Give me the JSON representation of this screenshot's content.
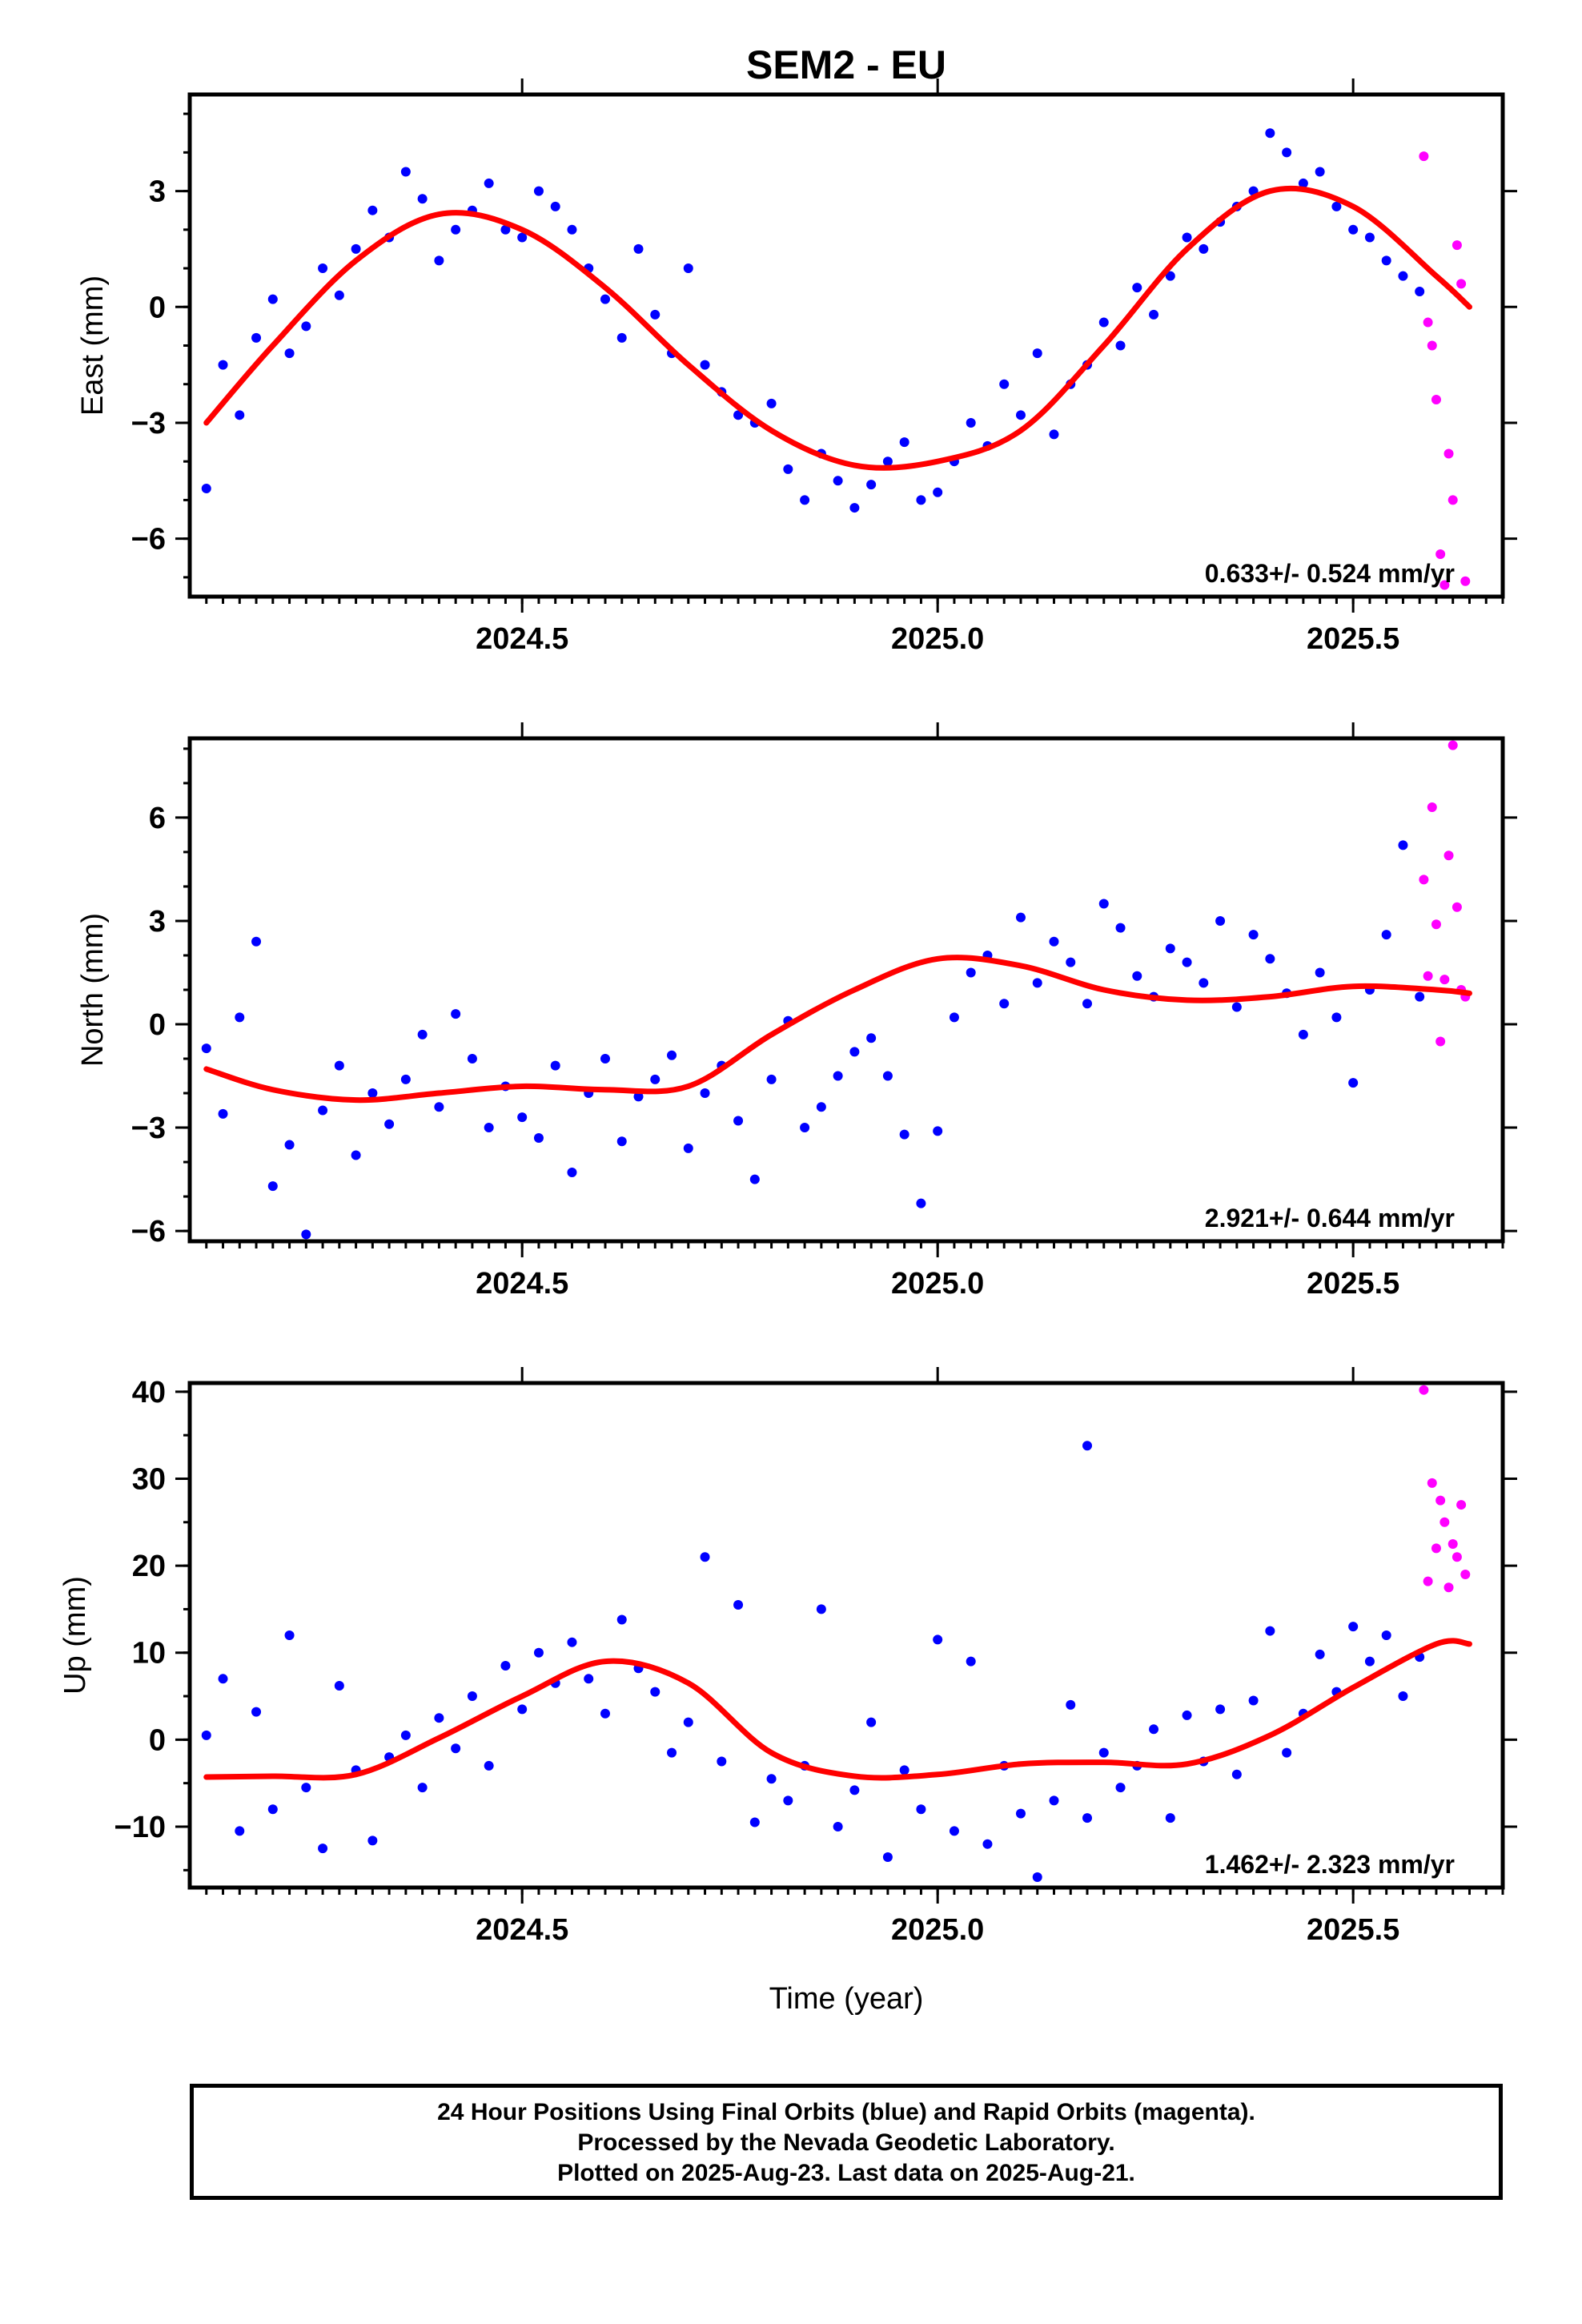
{
  "title": "SEM2 - EU",
  "caption": {
    "line1": "24 Hour Positions Using Final Orbits (blue) and Rapid Orbits (magenta).",
    "line2": "Processed by the Nevada Geodetic Laboratory.",
    "line3": "Plotted on 2025-Aug-23. Last data on 2025-Aug-21."
  },
  "colors": {
    "final": "#0000ff",
    "rapid": "#ff00ff",
    "model": "#ff0000"
  },
  "chart_data": [
    {
      "type": "scatter",
      "ylabel": "East (mm)",
      "xlim": [
        2024.1,
        2025.68
      ],
      "ylim": [
        -7.5,
        5.5
      ],
      "xticks": [
        "2024.5",
        "2025.0",
        "2025.5"
      ],
      "yticks": [
        "3",
        "0",
        "−3",
        "−6"
      ],
      "rate_label": "0.633+/- 0.524 mm/yr",
      "series": [
        {
          "style": "final-points",
          "x": [
            2024.12,
            2024.14,
            2024.16,
            2024.18,
            2024.2,
            2024.22,
            2024.24,
            2024.26,
            2024.28,
            2024.3,
            2024.32,
            2024.34,
            2024.36,
            2024.38,
            2024.4,
            2024.42,
            2024.44,
            2024.46,
            2024.48,
            2024.5,
            2024.52,
            2024.54,
            2024.56,
            2024.58,
            2024.6,
            2024.62,
            2024.64,
            2024.66,
            2024.68,
            2024.7,
            2024.72,
            2024.74,
            2024.76,
            2024.78,
            2024.8,
            2024.82,
            2024.84,
            2024.86,
            2024.88,
            2024.9,
            2024.92,
            2024.94,
            2024.96,
            2024.98,
            2025.0,
            2025.02,
            2025.04,
            2025.06,
            2025.08,
            2025.1,
            2025.12,
            2025.14,
            2025.16,
            2025.18,
            2025.2,
            2025.22,
            2025.24,
            2025.26,
            2025.28,
            2025.3,
            2025.32,
            2025.34,
            2025.36,
            2025.38,
            2025.4,
            2025.42,
            2025.44,
            2025.46,
            2025.48,
            2025.5,
            2025.52,
            2025.54,
            2025.56,
            2025.58
          ],
          "y": [
            -4.7,
            -1.5,
            -2.8,
            -0.8,
            0.2,
            -1.2,
            -0.5,
            1.0,
            0.3,
            1.5,
            2.5,
            1.8,
            3.5,
            2.8,
            1.2,
            2.0,
            2.5,
            3.2,
            2.0,
            1.8,
            3.0,
            2.6,
            2.0,
            1.0,
            0.2,
            -0.8,
            1.5,
            -0.2,
            -1.2,
            1.0,
            -1.5,
            -2.2,
            -2.8,
            -3.0,
            -2.5,
            -4.2,
            -5.0,
            -3.8,
            -4.5,
            -5.2,
            -4.6,
            -4.0,
            -3.5,
            -5.0,
            -4.8,
            -4.0,
            -3.0,
            -3.6,
            -2.0,
            -2.8,
            -1.2,
            -3.3,
            -2.0,
            -1.5,
            -0.4,
            -1.0,
            0.5,
            -0.2,
            0.8,
            1.8,
            1.5,
            2.2,
            2.6,
            3.0,
            4.5,
            4.0,
            3.2,
            3.5,
            2.6,
            2.0,
            1.8,
            1.2,
            0.8,
            0.4
          ]
        },
        {
          "style": "rapid-points",
          "x": [
            2025.585,
            2025.59,
            2025.595,
            2025.6,
            2025.605,
            2025.61,
            2025.615,
            2025.62,
            2025.625,
            2025.63,
            2025.635
          ],
          "y": [
            3.9,
            -0.4,
            -1.0,
            -2.4,
            -6.4,
            -7.2,
            -3.8,
            -5.0,
            1.6,
            0.6,
            -7.1
          ]
        },
        {
          "style": "model-line",
          "x": [
            2024.12,
            2024.2,
            2024.3,
            2024.4,
            2024.5,
            2024.6,
            2024.7,
            2024.8,
            2024.9,
            2025.0,
            2025.1,
            2025.2,
            2025.3,
            2025.4,
            2025.5,
            2025.6,
            2025.64
          ],
          "y": [
            -3.0,
            -1.0,
            1.2,
            2.4,
            2.0,
            0.5,
            -1.5,
            -3.2,
            -4.1,
            -4.0,
            -3.2,
            -1.0,
            1.5,
            3.0,
            2.6,
            0.8,
            0.0
          ]
        }
      ]
    },
    {
      "type": "scatter",
      "ylabel": "North (mm)",
      "xlim": [
        2024.1,
        2025.68
      ],
      "ylim": [
        -6.3,
        8.3
      ],
      "xticks": [
        "2024.5",
        "2025.0",
        "2025.5"
      ],
      "yticks": [
        "6",
        "3",
        "0",
        "−3",
        "−6"
      ],
      "rate_label": "2.921+/- 0.644 mm/yr",
      "series": [
        {
          "style": "final-points",
          "x": [
            2024.12,
            2024.14,
            2024.16,
            2024.18,
            2024.2,
            2024.22,
            2024.24,
            2024.26,
            2024.28,
            2024.3,
            2024.32,
            2024.34,
            2024.36,
            2024.38,
            2024.4,
            2024.42,
            2024.44,
            2024.46,
            2024.48,
            2024.5,
            2024.52,
            2024.54,
            2024.56,
            2024.58,
            2024.6,
            2024.62,
            2024.64,
            2024.66,
            2024.68,
            2024.7,
            2024.72,
            2024.74,
            2024.76,
            2024.78,
            2024.8,
            2024.82,
            2024.84,
            2024.86,
            2024.88,
            2024.9,
            2024.92,
            2024.94,
            2024.96,
            2024.98,
            2025.0,
            2025.02,
            2025.04,
            2025.06,
            2025.08,
            2025.1,
            2025.12,
            2025.14,
            2025.16,
            2025.18,
            2025.2,
            2025.22,
            2025.24,
            2025.26,
            2025.28,
            2025.3,
            2025.32,
            2025.34,
            2025.36,
            2025.38,
            2025.4,
            2025.42,
            2025.44,
            2025.46,
            2025.48,
            2025.5,
            2025.52,
            2025.54,
            2025.56,
            2025.58
          ],
          "y": [
            -0.7,
            -2.6,
            0.2,
            2.4,
            -4.7,
            -3.5,
            -6.1,
            -2.5,
            -1.2,
            -3.8,
            -2.0,
            -2.9,
            -1.6,
            -0.3,
            -2.4,
            0.3,
            -1.0,
            -3.0,
            -1.8,
            -2.7,
            -3.3,
            -1.2,
            -4.3,
            -2.0,
            -1.0,
            -3.4,
            -2.1,
            -1.6,
            -0.9,
            -3.6,
            -2.0,
            -1.2,
            -2.8,
            -4.5,
            -1.6,
            0.1,
            -3.0,
            -2.4,
            -1.5,
            -0.8,
            -0.4,
            -1.5,
            -3.2,
            -5.2,
            -3.1,
            0.2,
            1.5,
            2.0,
            0.6,
            3.1,
            1.2,
            2.4,
            1.8,
            0.6,
            3.5,
            2.8,
            1.4,
            0.8,
            2.2,
            1.8,
            1.2,
            3.0,
            0.5,
            2.6,
            1.9,
            0.9,
            -0.3,
            1.5,
            0.2,
            -1.7,
            1.0,
            2.6,
            5.2,
            0.8
          ]
        },
        {
          "style": "rapid-points",
          "x": [
            2025.585,
            2025.59,
            2025.595,
            2025.6,
            2025.605,
            2025.61,
            2025.615,
            2025.62,
            2025.625,
            2025.63,
            2025.635
          ],
          "y": [
            4.2,
            1.4,
            6.3,
            2.9,
            -0.5,
            1.3,
            4.9,
            8.1,
            3.4,
            1.0,
            0.8
          ]
        },
        {
          "style": "model-line",
          "x": [
            2024.12,
            2024.2,
            2024.3,
            2024.4,
            2024.5,
            2024.6,
            2024.7,
            2024.8,
            2024.9,
            2025.0,
            2025.1,
            2025.2,
            2025.3,
            2025.4,
            2025.5,
            2025.6,
            2025.64
          ],
          "y": [
            -1.3,
            -1.9,
            -2.2,
            -2.0,
            -1.8,
            -1.9,
            -1.8,
            -0.3,
            1.0,
            1.9,
            1.7,
            1.0,
            0.7,
            0.8,
            1.1,
            1.0,
            0.9
          ]
        }
      ]
    },
    {
      "type": "scatter",
      "ylabel": "Up (mm)",
      "xlabel": "Time (year)",
      "xlim": [
        2024.1,
        2025.68
      ],
      "ylim": [
        -17,
        41
      ],
      "xticks": [
        "2024.5",
        "2025.0",
        "2025.5"
      ],
      "yticks": [
        "40",
        "30",
        "20",
        "10",
        "0",
        "−10"
      ],
      "rate_label": "1.462+/- 2.323 mm/yr",
      "series": [
        {
          "style": "final-points",
          "x": [
            2024.12,
            2024.14,
            2024.16,
            2024.18,
            2024.2,
            2024.22,
            2024.24,
            2024.26,
            2024.28,
            2024.3,
            2024.32,
            2024.34,
            2024.36,
            2024.38,
            2024.4,
            2024.42,
            2024.44,
            2024.46,
            2024.48,
            2024.5,
            2024.52,
            2024.54,
            2024.56,
            2024.58,
            2024.6,
            2024.62,
            2024.64,
            2024.66,
            2024.68,
            2024.7,
            2024.72,
            2024.74,
            2024.76,
            2024.78,
            2024.8,
            2024.82,
            2024.84,
            2024.86,
            2024.88,
            2024.9,
            2024.92,
            2024.94,
            2024.96,
            2024.98,
            2025.0,
            2025.02,
            2025.04,
            2025.06,
            2025.08,
            2025.1,
            2025.12,
            2025.14,
            2025.16,
            2025.18,
            2025.2,
            2025.22,
            2025.24,
            2025.26,
            2025.28,
            2025.3,
            2025.32,
            2025.34,
            2025.36,
            2025.38,
            2025.4,
            2025.42,
            2025.44,
            2025.46,
            2025.48,
            2025.5,
            2025.52,
            2025.54,
            2025.56,
            2025.58
          ],
          "y": [
            0.5,
            7.0,
            -10.5,
            3.2,
            -8.0,
            12.0,
            -5.5,
            -12.5,
            6.2,
            -3.5,
            -11.6,
            -2.0,
            0.5,
            -5.5,
            2.5,
            -1.0,
            5.0,
            -3.0,
            8.5,
            3.5,
            10.0,
            6.5,
            11.2,
            7.0,
            3.0,
            13.8,
            8.2,
            5.5,
            -1.5,
            2.0,
            21.0,
            -2.5,
            15.5,
            -9.5,
            -4.5,
            -7.0,
            -3.0,
            15.0,
            -10.0,
            -5.8,
            2.0,
            -13.5,
            -3.5,
            -8.0,
            11.5,
            -10.5,
            9.0,
            -12.0,
            -3.0,
            -8.5,
            -15.8,
            -7.0,
            4.0,
            -9.0,
            -1.5,
            -5.5,
            -3.0,
            1.2,
            -9.0,
            2.8,
            -2.5,
            3.5,
            -4.0,
            4.5,
            12.5,
            -1.5,
            3.0,
            9.8,
            5.5,
            13.0,
            9.0,
            12.0,
            5.0,
            9.5
          ]
        },
        {
          "style": "final-outlier",
          "x": [
            2025.18
          ],
          "y": [
            33.8
          ]
        },
        {
          "style": "rapid-points",
          "x": [
            2025.585,
            2025.59,
            2025.595,
            2025.6,
            2025.605,
            2025.61,
            2025.615,
            2025.62,
            2025.625,
            2025.63,
            2025.635
          ],
          "y": [
            40.2,
            18.2,
            29.5,
            22.0,
            27.5,
            25.0,
            17.5,
            22.5,
            21.0,
            27.0,
            19.0
          ]
        },
        {
          "style": "model-line",
          "x": [
            2024.12,
            2024.2,
            2024.3,
            2024.4,
            2024.5,
            2024.6,
            2024.7,
            2024.8,
            2024.9,
            2025.0,
            2025.1,
            2025.2,
            2025.3,
            2025.4,
            2025.5,
            2025.6,
            2025.64
          ],
          "y": [
            -4.3,
            -4.2,
            -4.0,
            0.2,
            5.0,
            9.0,
            6.5,
            -1.5,
            -4.2,
            -4.0,
            -2.8,
            -2.6,
            -2.8,
            0.5,
            6.0,
            11.0,
            11.0
          ]
        }
      ]
    }
  ]
}
